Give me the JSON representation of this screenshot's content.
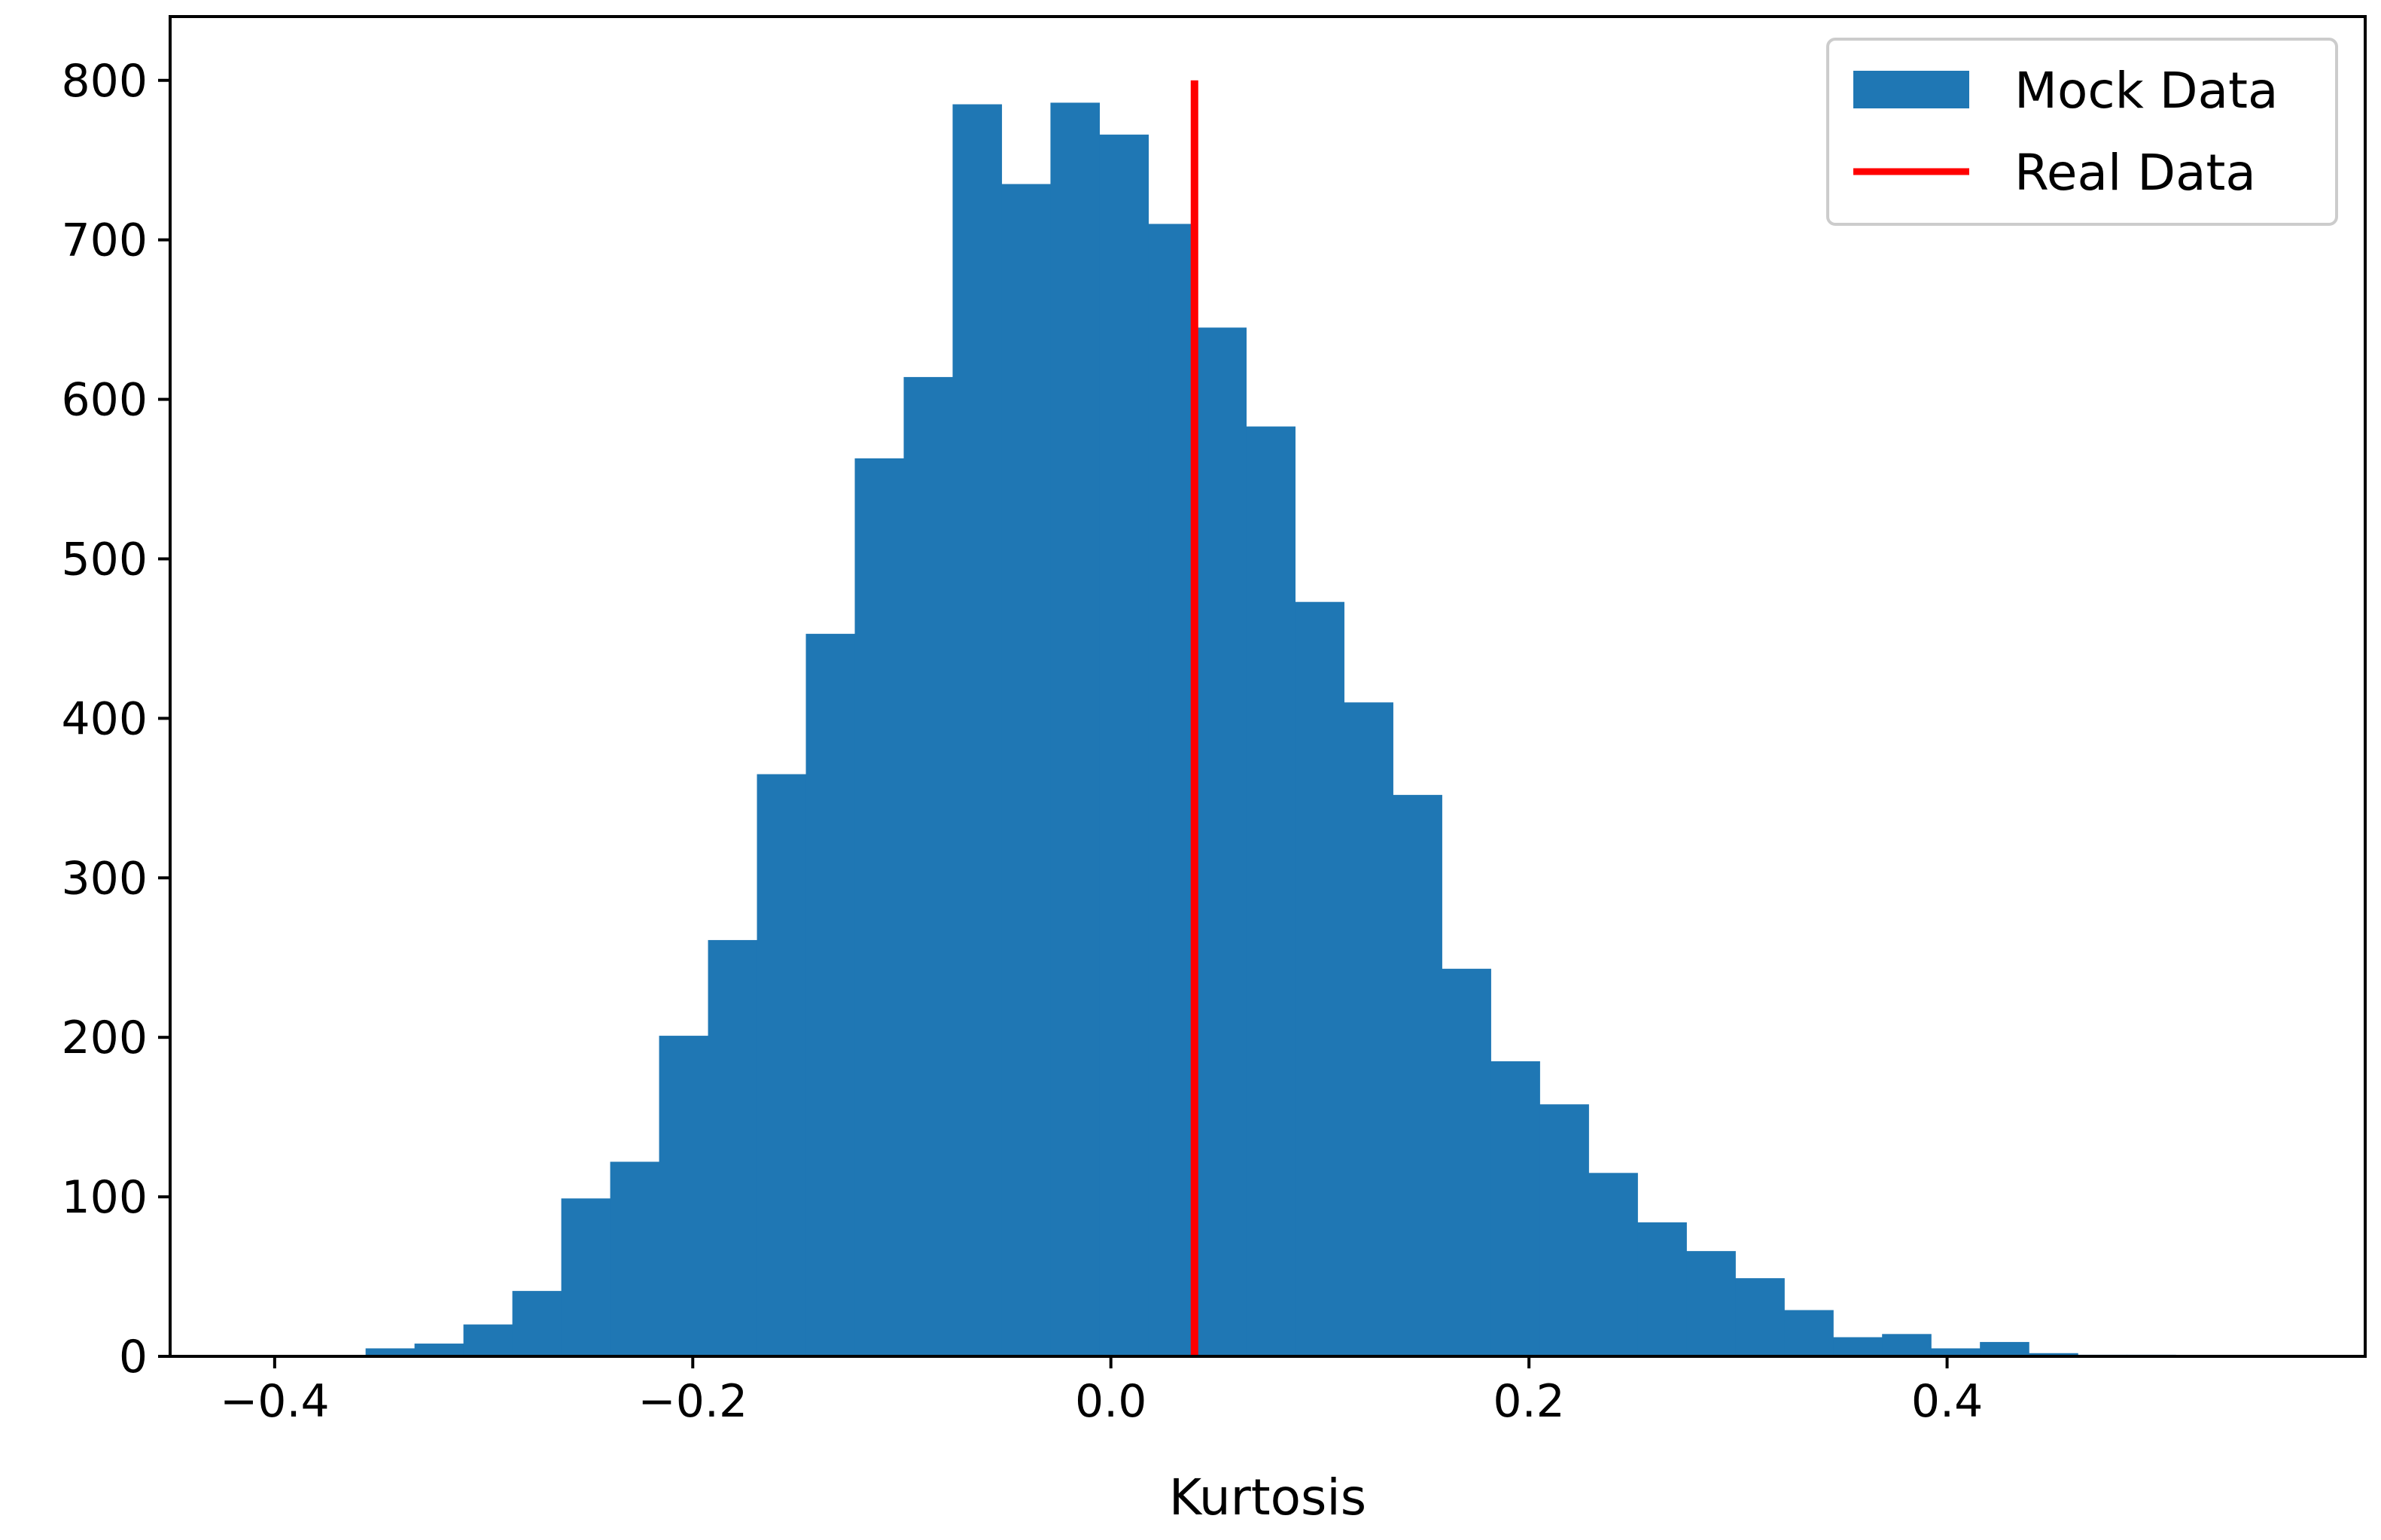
{
  "chart_data": {
    "type": "bar",
    "title": "",
    "xlabel": "Kurtosis",
    "ylabel": "",
    "xlim": [
      -0.45,
      0.6
    ],
    "ylim": [
      0,
      840
    ],
    "xticks": [
      -0.4,
      -0.2,
      0.0,
      0.2,
      0.4
    ],
    "xtick_labels": [
      "−0.4",
      "−0.2",
      "0.0",
      "0.2",
      "0.4"
    ],
    "yticks": [
      0,
      100,
      200,
      300,
      400,
      500,
      600,
      700,
      800
    ],
    "ytick_labels": [
      "0",
      "100",
      "200",
      "300",
      "400",
      "500",
      "600",
      "700",
      "800"
    ],
    "grid": false,
    "legend_placement": "top-right",
    "series": [
      {
        "name": "Mock Data",
        "kind": "histogram",
        "color": "#1f77b4",
        "bin_edges": [
          -0.3565,
          -0.3331,
          -0.3097,
          -0.2863,
          -0.2629,
          -0.2395,
          -0.2161,
          -0.1927,
          -0.1693,
          -0.1459,
          -0.1225,
          -0.0991,
          -0.0757,
          -0.0523,
          -0.0289,
          -0.0055,
          0.0179,
          0.0413,
          0.0647,
          0.0881,
          0.1115,
          0.1349,
          0.1583,
          0.1817,
          0.2051,
          0.2285,
          0.2519,
          0.2753,
          0.2987,
          0.3221,
          0.3455,
          0.3689,
          0.3923,
          0.4157,
          0.4391,
          0.4625,
          0.4859,
          0.5093
        ],
        "counts": [
          5,
          8,
          20,
          41,
          99,
          122,
          201,
          261,
          365,
          453,
          563,
          614,
          785,
          735,
          786,
          766,
          710,
          645,
          583,
          473,
          410,
          352,
          243,
          185,
          158,
          115,
          84,
          66,
          49,
          29,
          12,
          14,
          5,
          9,
          2,
          1,
          1
        ]
      },
      {
        "name": "Real Data",
        "kind": "vline",
        "color": "#ff0000",
        "x": 0.04,
        "ymin": 0,
        "ymax": 800
      }
    ]
  }
}
